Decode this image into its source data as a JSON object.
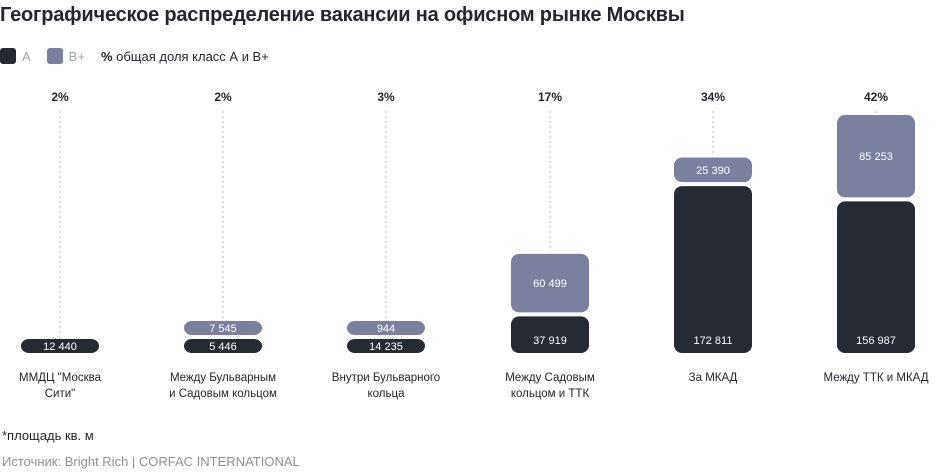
{
  "title": "Географическое распределение вакансии на офисном рынке Москвы",
  "legend": {
    "a_label": "A",
    "bplus_label": "B+",
    "share_prefix": "%",
    "share_label": "общая доля класс А и В+"
  },
  "colors": {
    "A": "#262a33",
    "Bplus": "#7b809f",
    "dotted": "#c9ccd2"
  },
  "chart_data": {
    "type": "bar",
    "stacked": true,
    "categories": [
      "ММДЦ \"Москва Сити\"",
      "Между Бульварным и Садовым кольцом",
      "Внутри Бульварного кольца",
      "Между Садовым кольцом и ТТК",
      "За МКАД",
      "Между ТТК и МКАД"
    ],
    "category_lines": [
      [
        "ММДЦ \"Москва",
        "Сити\""
      ],
      [
        "Между Бульварным",
        "и Садовым кольцом"
      ],
      [
        "Внутри Бульварного",
        "кольца"
      ],
      [
        "Между Садовым",
        "кольцом и ТТК"
      ],
      [
        "За МКАД"
      ],
      [
        "Между ТТК и МКАД"
      ]
    ],
    "series": [
      {
        "name": "A",
        "values": [
          12440,
          5446,
          14235,
          37919,
          172811,
          156987
        ],
        "labels": [
          "12 440",
          "5 446",
          "14 235",
          "37 919",
          "172 811",
          "156 987"
        ]
      },
      {
        "name": "B+",
        "values": [
          null,
          7545,
          944,
          60499,
          25390,
          85253
        ],
        "labels": [
          null,
          "7 545",
          "944",
          "60 499",
          "25 390",
          "85 253"
        ]
      }
    ],
    "share_percent": [
      2,
      2,
      3,
      17,
      34,
      42
    ],
    "share_labels": [
      "2%",
      "2%",
      "3%",
      "17%",
      "34%",
      "42%"
    ],
    "unit_note": "*площадь кв. м"
  },
  "footnote": "*площадь кв. м",
  "source": "Источник: Bright Rich | CORFAC INTERNATIONAL"
}
